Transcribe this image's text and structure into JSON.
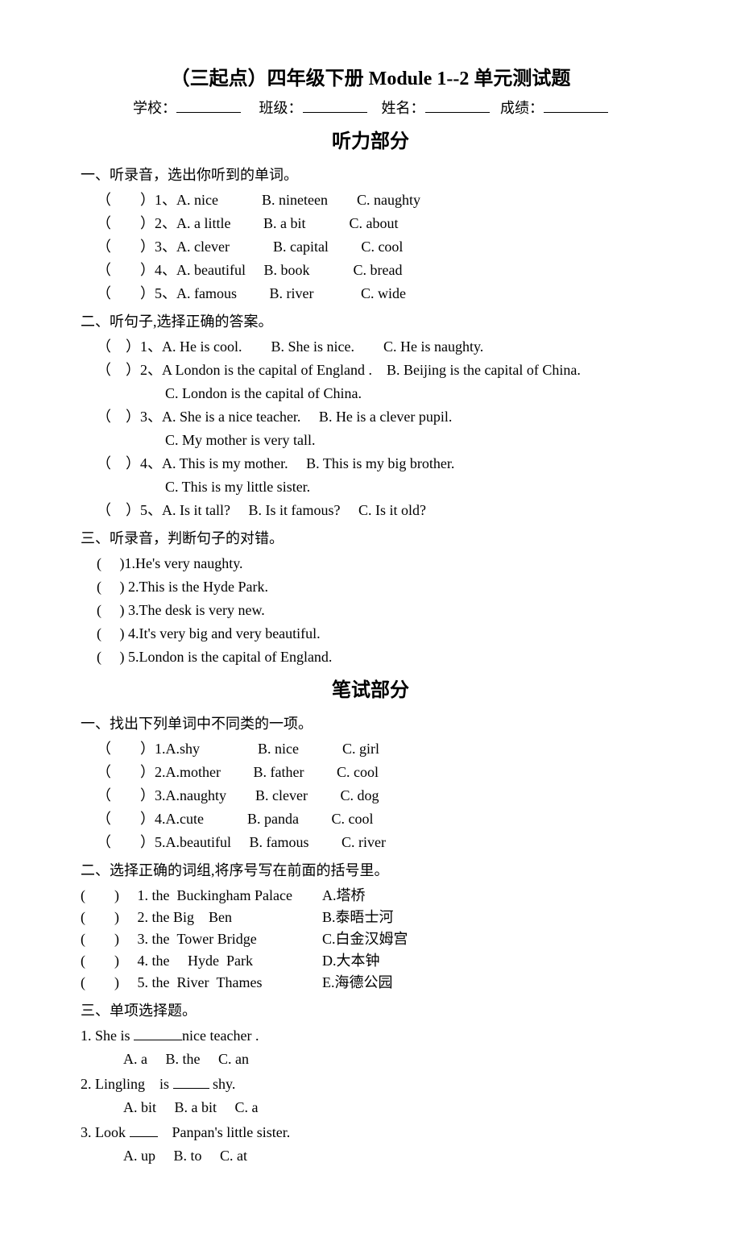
{
  "title": "（三起点）四年级下册 Module 1--2 单元测试题",
  "info": {
    "school_label": "学校：",
    "class_label": "班级：",
    "name_label": "姓名：",
    "score_label": "成绩："
  },
  "listening": {
    "title": "听力部分",
    "sections": [
      {
        "heading": "一、听录音，选出你听到的单词。",
        "items": [
          "（　　）1、A. nice　　　B. nineteen　　C. naughty",
          "（　　）2、A. a little　　 B. a bit　　　C. about",
          "（　　）3、A. clever　　　B. capital　　 C. cool",
          "（　　）4、A. beautiful　 B. book　　　C. bread",
          "（　　）5、A. famous　　 B. river　　　 C. wide"
        ]
      },
      {
        "heading": "二、听句子,选择正确的答案。",
        "items": [
          {
            "main": "（　）1、A. He is cool.　　B. She is nice.　　C. He is naughty."
          },
          {
            "main": "（　）2、A London is the capital of England .　B. Beijing is the capital of China.",
            "sub": "C. London is the capital of China."
          },
          {
            "main": "（　）3、A. She is a nice teacher.　 B. He is a clever pupil.",
            "sub": "C. My mother is very tall."
          },
          {
            "main": "（　）4、A. This is my mother.　 B. This is my big brother.",
            "sub": "C. This is my little sister."
          },
          {
            "main": "（　）5、A. Is it tall?　 B. Is it famous?　 C. Is it old?"
          }
        ]
      },
      {
        "heading": "三、听录音，判断句子的对错。",
        "items": [
          "(　 )1.He's very naughty.",
          "(　 ) 2.This is the Hyde Park.",
          "(　 ) 3.The desk is very new.",
          "(　 ) 4.It's very big and very beautiful.",
          "(　 ) 5.London is the capital of England."
        ]
      }
    ]
  },
  "written": {
    "title": "笔试部分",
    "sections": [
      {
        "heading": "一、找出下列单词中不同类的一项。",
        "items": [
          "（　　）1.A.shy　　　　B. nice　　　C. girl",
          "（　　）2.A.mother　　 B. father　　 C. cool",
          "（　　）3.A.naughty　　B. clever　　 C. dog",
          "（　　）4.A.cute　　　B. panda　　 C. cool",
          "（　　）5.A.beautiful　 B. famous　　 C. river"
        ]
      },
      {
        "heading": "二、选择正确的词组,将序号写在前面的括号里。",
        "items": [
          {
            "left": "(　　)　 1. the Buckingham Palace",
            "right": "A.塔桥"
          },
          {
            "left": "(　　)　 2. the Big　Ben",
            "right": "B.泰晤士河"
          },
          {
            "left": "(　　)　 3. the Tower Bridge",
            "right": "C.白金汉姆宫"
          },
          {
            "left": "(　　)　 4. the　 Hyde Park",
            "right": "D.大本钟"
          },
          {
            "left": "(　　)　 5. the River Thames",
            "right": "E.海德公园"
          }
        ]
      },
      {
        "heading": "三、单项选择题。",
        "questions": [
          {
            "stem_pre": "1. She is ",
            "stem_post": "nice teacher .",
            "blank_class": "fill-blank",
            "choices": "　A. a　 B. the　 C. an"
          },
          {
            "stem_pre": "2. Lingling　is ",
            "stem_post": " shy.",
            "blank_class": "fill-blank-short",
            "choices": "　A. bit　 B. a bit　 C. a"
          },
          {
            "stem_pre": "3. Look ",
            "stem_post": "　Panpan's little sister.",
            "blank_class": "fill-blank-tiny",
            "choices": "　A. up　 B. to　 C. at"
          }
        ]
      }
    ]
  }
}
